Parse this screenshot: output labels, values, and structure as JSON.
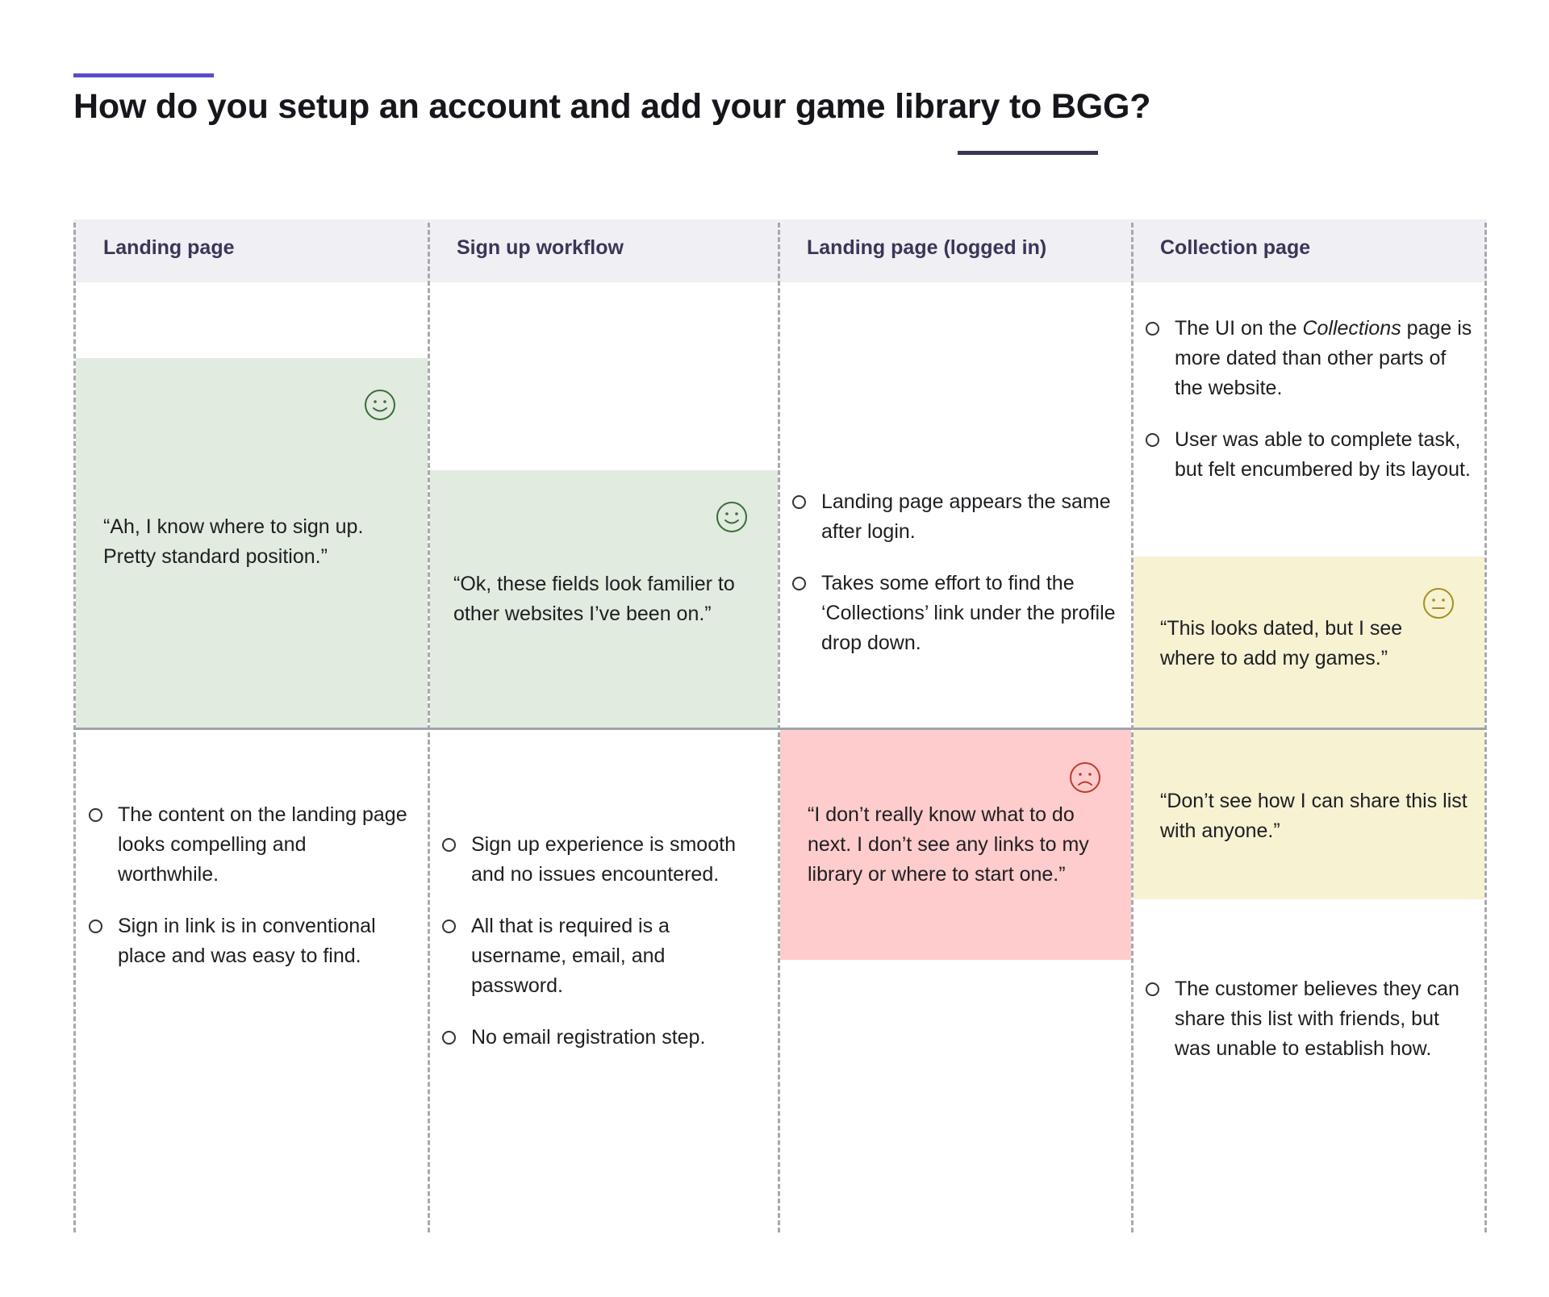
{
  "title": "How do you setup an account and add your game library to BGG?",
  "colors": {
    "accent_top": "#5b4cc9",
    "accent_under": "#3a3552",
    "positive": "#e1ebdf",
    "neutral": "#f6f2d2",
    "negative": "#fecccc",
    "header_band": "#f0eff4"
  },
  "columns": [
    {
      "heading": "Landing page",
      "quote": {
        "text": "“Ah, I know where to sign up. Pretty standard position.”",
        "sentiment": "positive",
        "icon": "happy-face-icon"
      },
      "observations": [
        "The content on the landing page looks compelling and worthwhile.",
        "Sign in link is in conventional place and was easy to find."
      ]
    },
    {
      "heading": "Sign up workflow",
      "quote": {
        "text": "“Ok, these fields look familier to other websites I’ve been on.”",
        "sentiment": "positive",
        "icon": "happy-face-icon"
      },
      "observations": [
        "Sign up experience is smooth and no issues encountered.",
        "All that is required is a username, email, and password.",
        "No email registration step."
      ]
    },
    {
      "heading": "Landing page (logged in)",
      "observations_top": [
        "Landing page appears the same after login.",
        "Takes some effort to find the ‘Collections’ link under the profile drop down."
      ],
      "quote": {
        "text": "“I don’t really know what to do next. I don’t see any links to my library or where to start one.”",
        "sentiment": "negative",
        "icon": "sad-face-icon"
      }
    },
    {
      "heading": "Collection page",
      "observations_top": [
        {
          "before": "The UI on the ",
          "emphasis": "Collections",
          "after": " page is more dated than other parts of the website."
        },
        "User was able to complete task, but felt encumbered by its layout."
      ],
      "quote_top": {
        "text": "“This looks dated, but I see where to add my games.”",
        "sentiment": "neutral",
        "icon": "neutral-face-icon"
      },
      "quote_bottom": {
        "text": "“Don’t see how I can share this list with anyone.”",
        "sentiment": "neutral"
      },
      "observations": [
        "The customer believes they can share this list with friends, but was unable to establish how."
      ]
    }
  ]
}
